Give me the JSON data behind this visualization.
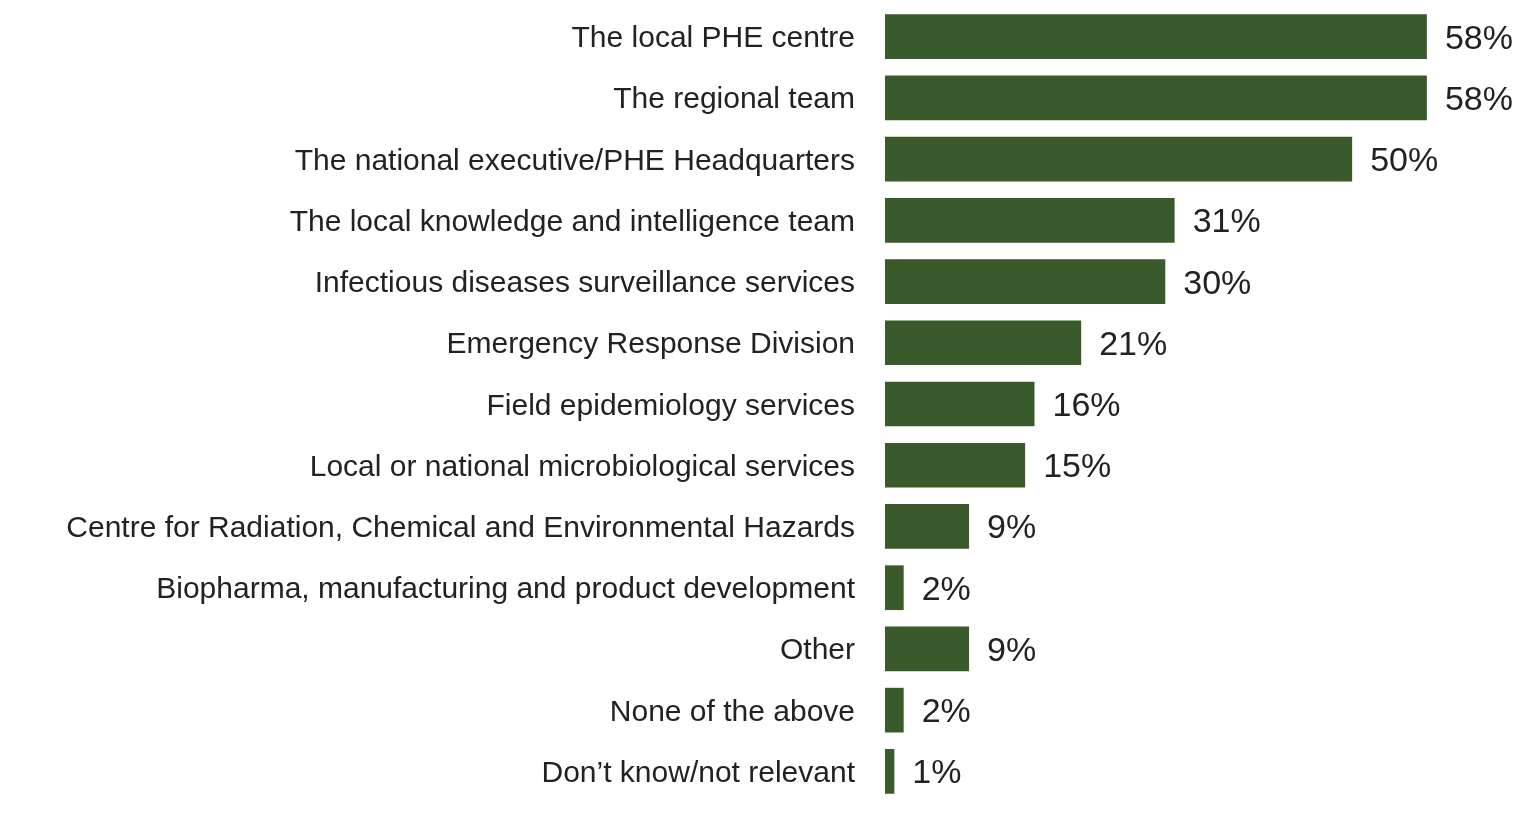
{
  "chart_data": {
    "type": "bar",
    "orientation": "horizontal",
    "categories": [
      "The local PHE centre",
      "The regional team",
      "The national executive/PHE Headquarters",
      "The local knowledge and intelligence team",
      "Infectious diseases surveillance services",
      "Emergency Response Division",
      "Field epidemiology services",
      "Local or national microbiological services",
      "Centre for Radiation, Chemical and Environmental Hazards",
      "Biopharma, manufacturing and product development",
      "Other",
      "None of the above",
      "Don’t know/not relevant"
    ],
    "values": [
      58,
      58,
      50,
      31,
      30,
      21,
      16,
      15,
      9,
      2,
      9,
      2,
      1
    ],
    "value_labels": [
      "58%",
      "58%",
      "50%",
      "31%",
      "30%",
      "21%",
      "16%",
      "15%",
      "9%",
      "2%",
      "9%",
      "2%",
      "1%"
    ],
    "color": "#3a5a2b"
  }
}
